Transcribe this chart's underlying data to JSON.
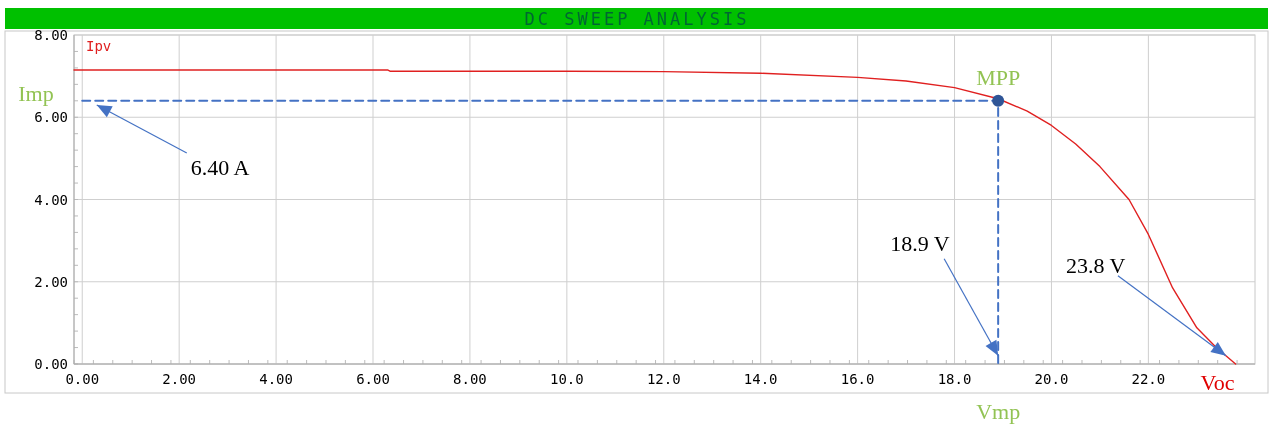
{
  "chart_data": {
    "type": "line",
    "title": "DC SWEEP ANALYSIS",
    "xlim": [
      -0.17,
      24.2
    ],
    "ylim": [
      0,
      8
    ],
    "xticks": [
      {
        "value": 0,
        "label": "0.00"
      },
      {
        "value": 2,
        "label": "2.00"
      },
      {
        "value": 4,
        "label": "4.00"
      },
      {
        "value": 6,
        "label": "6.00"
      },
      {
        "value": 8,
        "label": "8.00"
      },
      {
        "value": 10,
        "label": "10.0"
      },
      {
        "value": 12,
        "label": "12.0"
      },
      {
        "value": 14,
        "label": "14.0"
      },
      {
        "value": 16,
        "label": "16.0"
      },
      {
        "value": 18,
        "label": "18.0"
      },
      {
        "value": 20,
        "label": "20.0"
      },
      {
        "value": 22,
        "label": "22.0"
      }
    ],
    "yticks": [
      {
        "value": 0,
        "label": "0.00"
      },
      {
        "value": 2,
        "label": "2.00"
      },
      {
        "value": 4,
        "label": "4.00"
      },
      {
        "value": 6,
        "label": "6.00"
      },
      {
        "value": 8,
        "label": "8.00"
      }
    ],
    "grid": true,
    "series": [
      {
        "name": "Ipv",
        "color": "#e02020",
        "marker": "none",
        "line_style": "solid",
        "x": [
          -0.17,
          6.3,
          6.35,
          10,
          12,
          14,
          16,
          17,
          18,
          18.9,
          19.5,
          20,
          20.5,
          21,
          21.6,
          22,
          22.5,
          23,
          23.4,
          23.8
        ],
        "values": [
          7.15,
          7.15,
          7.12,
          7.12,
          7.11,
          7.07,
          6.97,
          6.88,
          6.72,
          6.45,
          6.15,
          5.8,
          5.35,
          4.8,
          4.0,
          3.15,
          1.85,
          0.88,
          0.4,
          0
        ]
      },
      {
        "color": "#4472c4",
        "marker": "none",
        "line_style": "dashed",
        "x": [
          0,
          18.9,
          18.9
        ],
        "values": [
          6.4,
          6.4,
          0
        ]
      },
      {
        "type": "scatter",
        "color": "#2f5597",
        "marker": "circle",
        "x": [
          18.9
        ],
        "values": [
          6.4
        ]
      }
    ],
    "annotations": [
      {
        "text": "Imp",
        "x": 0,
        "y": 6.4
      },
      {
        "text": "6.40 A",
        "x": 0.3,
        "y": 6.3
      },
      {
        "text": "MPP",
        "x": 18.9,
        "y": 6.4
      },
      {
        "text": "18.9 V",
        "x": 18.9,
        "y": 0.2
      },
      {
        "text": "Vmp",
        "x": 18.9,
        "y": 0
      },
      {
        "text": "23.8 V",
        "x": 23.6,
        "y": 0.2
      },
      {
        "text": "Voc",
        "x": 23.8,
        "y": 0
      }
    ]
  }
}
